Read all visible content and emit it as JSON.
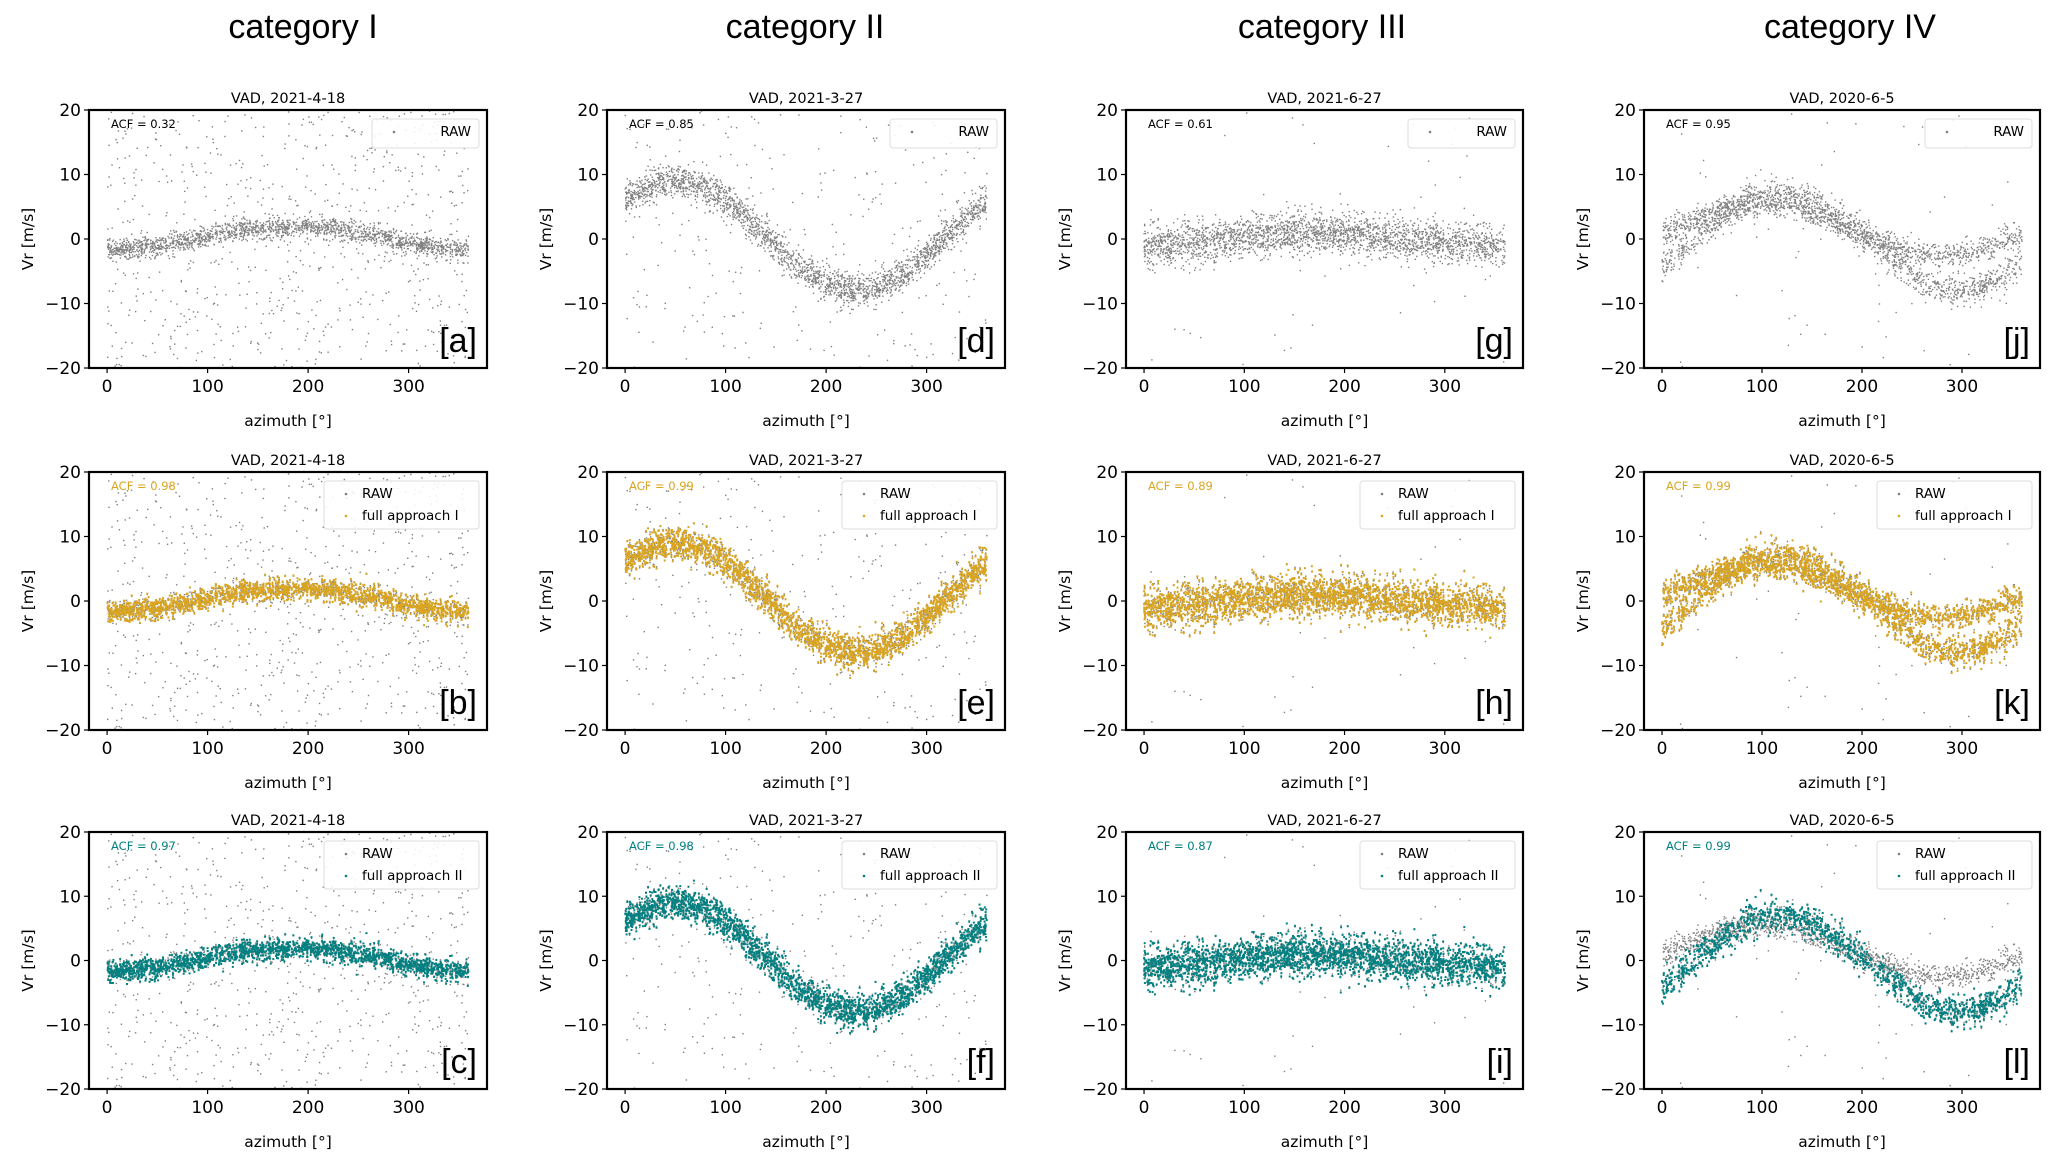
{
  "figure": {
    "columns": [
      {
        "title": "category I"
      },
      {
        "title": "category II"
      },
      {
        "title": "category III"
      },
      {
        "title": "category IV"
      }
    ]
  },
  "colors": {
    "raw": "#7f7f7f",
    "approach_I": "#DAA520",
    "approach_II": "#008080",
    "axes": "#000000"
  },
  "chart_data": {
    "type": "scatter",
    "layout": "3 rows x 4 columns",
    "xlabel": "azimuth  [°]",
    "ylabel": "Vr   [m/s]",
    "xlim": [
      -18,
      378
    ],
    "ylim": [
      -20,
      20
    ],
    "xticks": [
      0,
      100,
      200,
      300
    ],
    "yticks": [
      -20,
      -10,
      0,
      10,
      20
    ],
    "ytick_labels": [
      "−20",
      "−10",
      "0",
      "10",
      "20"
    ],
    "grid": false,
    "legend_position": "top-right",
    "acf_position": "top-left",
    "panels": [
      {
        "id": "a",
        "label": "[a]",
        "row": 0,
        "col": 0,
        "title": "VAD, 2021-4-18",
        "acf": "ACF = 0.32",
        "acf_color": "#000000",
        "series": [
          "RAW"
        ],
        "filtered": null
      },
      {
        "id": "b",
        "label": "[b]",
        "row": 1,
        "col": 0,
        "title": "VAD, 2021-4-18",
        "acf": "ACF = 0.98",
        "acf_color": "#DAA520",
        "series": [
          "RAW",
          "full approach I"
        ],
        "filtered": "approach_I"
      },
      {
        "id": "c",
        "label": "[c]",
        "row": 2,
        "col": 0,
        "title": "VAD, 2021-4-18",
        "acf": "ACF = 0.97",
        "acf_color": "#008080",
        "series": [
          "RAW",
          "full approach II"
        ],
        "filtered": "approach_II"
      },
      {
        "id": "d",
        "label": "[d]",
        "row": 0,
        "col": 1,
        "title": "VAD, 2021-3-27",
        "acf": "ACF = 0.85",
        "acf_color": "#000000",
        "series": [
          "RAW"
        ],
        "filtered": null
      },
      {
        "id": "e",
        "label": "[e]",
        "row": 1,
        "col": 1,
        "title": "VAD, 2021-3-27",
        "acf": "ACF = 0.99",
        "acf_color": "#DAA520",
        "series": [
          "RAW",
          "full approach I"
        ],
        "filtered": "approach_I"
      },
      {
        "id": "f",
        "label": "[f]",
        "row": 2,
        "col": 1,
        "title": "VAD, 2021-3-27",
        "acf": "ACF = 0.98",
        "acf_color": "#008080",
        "series": [
          "RAW",
          "full approach II"
        ],
        "filtered": "approach_II"
      },
      {
        "id": "g",
        "label": "[g]",
        "row": 0,
        "col": 2,
        "title": "VAD, 2021-6-27",
        "acf": "ACF = 0.61",
        "acf_color": "#000000",
        "series": [
          "RAW"
        ],
        "filtered": null
      },
      {
        "id": "h",
        "label": "[h]",
        "row": 1,
        "col": 2,
        "title": "VAD, 2021-6-27",
        "acf": "ACF = 0.89",
        "acf_color": "#DAA520",
        "series": [
          "RAW",
          "full approach I"
        ],
        "filtered": "approach_I"
      },
      {
        "id": "i",
        "label": "[i]",
        "row": 2,
        "col": 2,
        "title": "VAD, 2021-6-27",
        "acf": "ACF = 0.87",
        "acf_color": "#008080",
        "series": [
          "RAW",
          "full approach II"
        ],
        "filtered": "approach_II"
      },
      {
        "id": "j",
        "label": "[j]",
        "row": 0,
        "col": 3,
        "title": "VAD, 2020-6-5",
        "acf": "ACF = 0.95",
        "acf_color": "#000000",
        "series": [
          "RAW"
        ],
        "filtered": null
      },
      {
        "id": "k",
        "label": "[k]",
        "row": 1,
        "col": 3,
        "title": "VAD, 2020-6-5",
        "acf": "ACF = 0.99",
        "acf_color": "#DAA520",
        "series": [
          "RAW",
          "full approach I"
        ],
        "filtered": "approach_I"
      },
      {
        "id": "l",
        "label": "[l]",
        "row": 2,
        "col": 3,
        "title": "VAD, 2020-6-5",
        "acf": "ACF = 0.99",
        "acf_color": "#008080",
        "series": [
          "RAW",
          "full approach II"
        ],
        "filtered": "approach_II"
      }
    ],
    "column_signals": [
      {
        "col": 0,
        "description": "weak sinusoid with many outliers",
        "bands": [
          {
            "mean": 0.2,
            "amplitude": 1.8,
            "peak_azimuth": 185,
            "spread": 0.8
          }
        ],
        "outlier_fraction": 0.28,
        "filtered_keeps_bands": [
          0
        ]
      },
      {
        "col": 1,
        "description": "strong sinusoid with outliers",
        "bands": [
          {
            "mean": 0.5,
            "amplitude": 8.5,
            "peak_azimuth": 50,
            "spread": 1.3
          }
        ],
        "outlier_fraction": 0.12,
        "filtered_keeps_bands": [
          0
        ]
      },
      {
        "col": 2,
        "description": "near-zero noisy band",
        "bands": [
          {
            "mean": 0.0,
            "amplitude": 0.9,
            "peak_azimuth": 175,
            "spread": 1.6
          }
        ],
        "outlier_fraction": 0.02,
        "filtered_keeps_bands": [
          0
        ]
      },
      {
        "col": 3,
        "description": "two overlapping sinusoids",
        "bands": [
          {
            "mean": -0.5,
            "amplitude": 7.5,
            "peak_azimuth": 118,
            "spread": 1.2
          },
          {
            "mean": 1.5,
            "amplitude": 4.0,
            "peak_azimuth": 100,
            "spread": 1.0
          }
        ],
        "outlier_fraction": 0.02,
        "filtered_keeps_bands": [
          0,
          1
        ],
        "approach_II_keeps_bands": [
          0
        ]
      }
    ]
  }
}
